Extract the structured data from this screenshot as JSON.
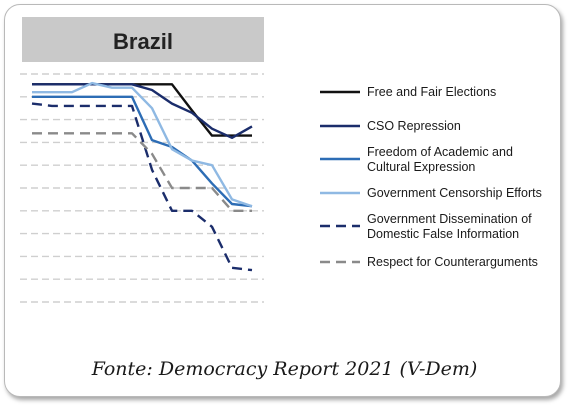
{
  "caption": "Fonte: Democracy Report 2021 (V-Dem)",
  "chart_data": {
    "type": "line",
    "title": "Brazil",
    "xlabel": "",
    "ylabel": "",
    "x": [
      0,
      1,
      2,
      3,
      4,
      5,
      6,
      7,
      8,
      9,
      10,
      11
    ],
    "ylim": [
      0,
      10
    ],
    "grid": true,
    "legend_position": "right",
    "series": [
      {
        "name": "Free and Fair Elections",
        "color": "#111111",
        "dash": "solid",
        "values": [
          9.55,
          9.55,
          9.55,
          9.55,
          9.55,
          9.55,
          9.55,
          9.55,
          8.4,
          7.3,
          7.3,
          7.3
        ]
      },
      {
        "name": "CSO Repression",
        "color": "#1b2d6b",
        "dash": "solid",
        "values": [
          9.55,
          9.55,
          9.55,
          9.55,
          9.55,
          9.55,
          9.3,
          8.7,
          8.3,
          7.6,
          7.2,
          7.7
        ]
      },
      {
        "name": "Freedom of Academic and Cultural Expression",
        "color": "#2d6db5",
        "dash": "solid",
        "values": [
          9.0,
          9.0,
          9.0,
          9.0,
          9.0,
          9.0,
          7.1,
          6.8,
          6.2,
          5.2,
          4.3,
          4.2
        ]
      },
      {
        "name": "Government Censorship Efforts",
        "color": "#8fb9e3",
        "dash": "solid",
        "values": [
          9.2,
          9.2,
          9.2,
          9.6,
          9.4,
          9.4,
          8.5,
          6.7,
          6.2,
          6.0,
          4.5,
          4.2
        ]
      },
      {
        "name": "Government Dissemination of Domestic False Information",
        "color": "#1b2d6b",
        "dash": "dashed",
        "values": [
          8.7,
          8.6,
          8.6,
          8.6,
          8.6,
          8.6,
          5.8,
          4.0,
          4.0,
          3.3,
          1.5,
          1.4
        ]
      },
      {
        "name": "Respect for Counterarguments",
        "color": "#8a8a8a",
        "dash": "dashed",
        "values": [
          7.4,
          7.4,
          7.4,
          7.4,
          7.4,
          7.4,
          6.5,
          5.0,
          5.0,
          5.0,
          4.0,
          4.0
        ]
      }
    ]
  }
}
